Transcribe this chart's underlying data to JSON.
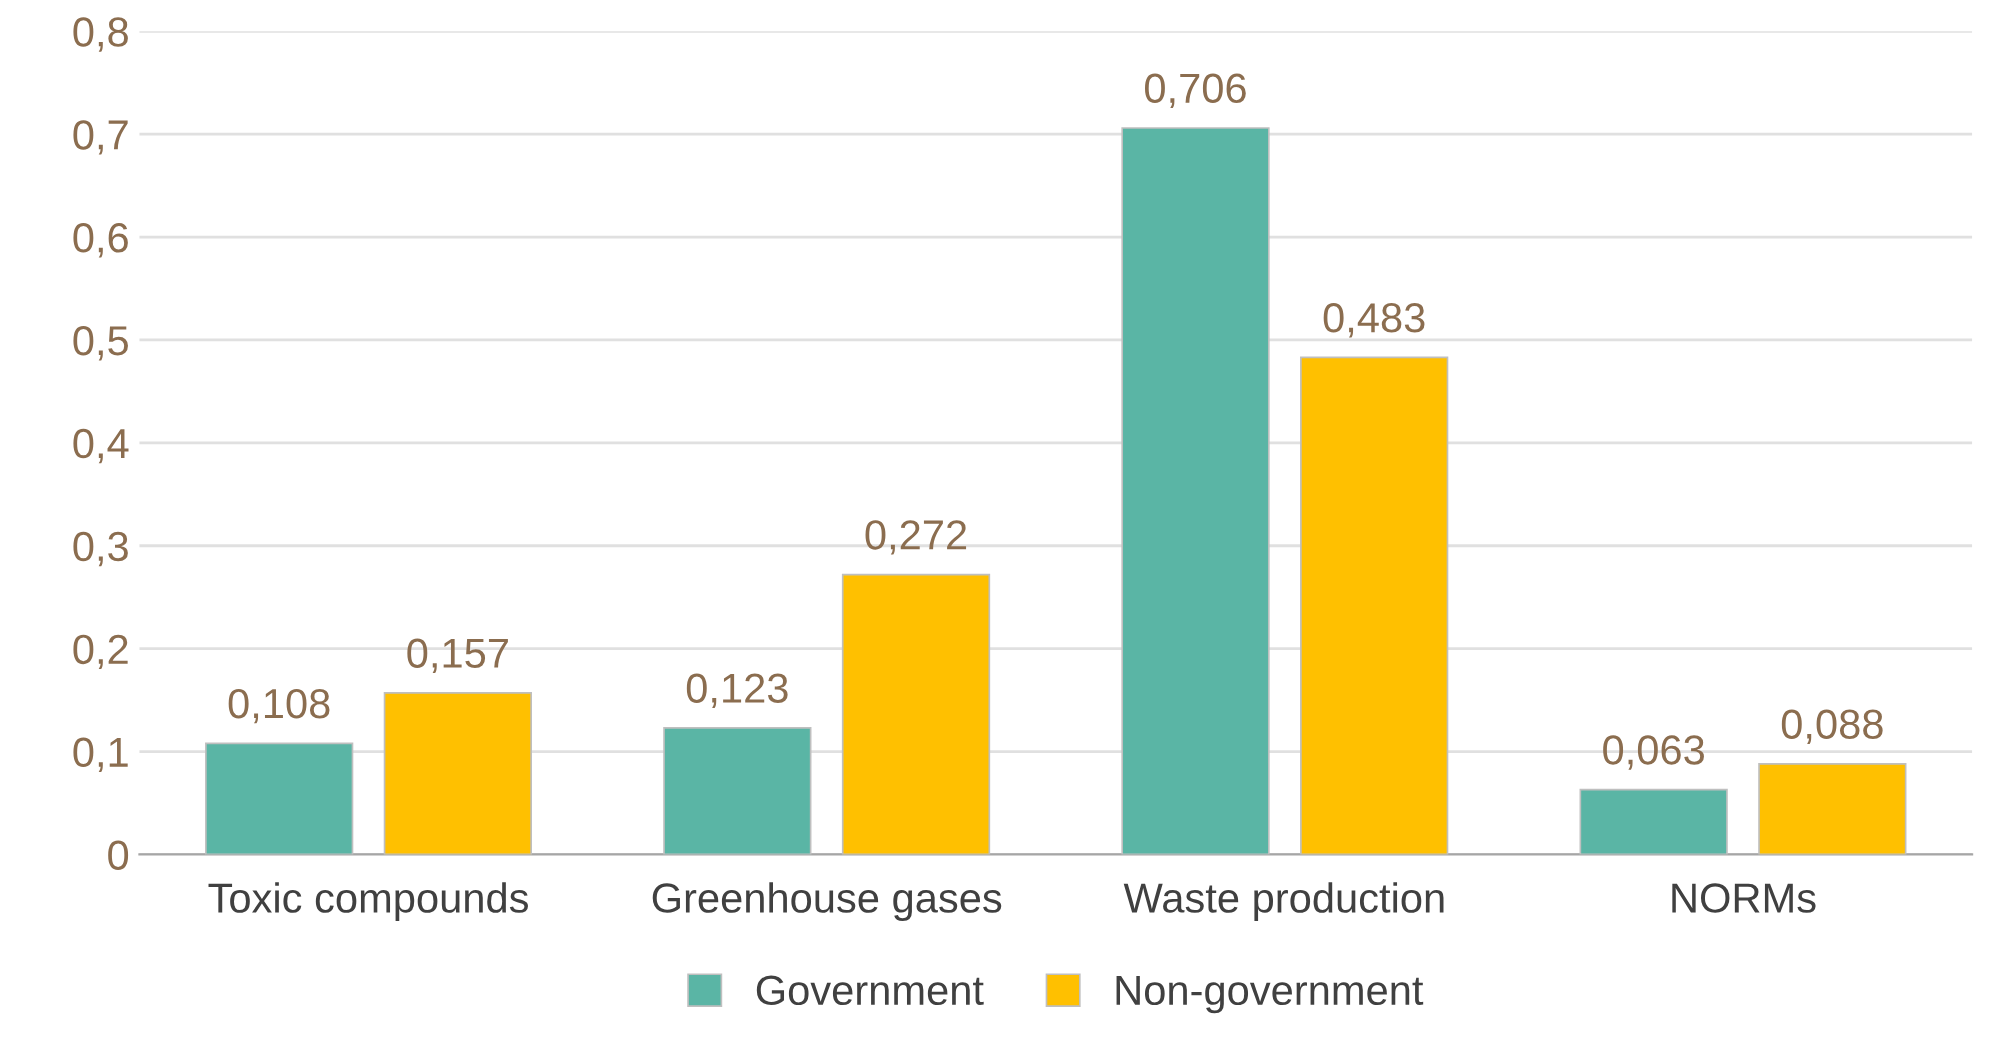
{
  "chart_data": {
    "type": "bar",
    "categories": [
      "Toxic compounds",
      "Greenhouse gases",
      "Waste production",
      "NORMs"
    ],
    "series": [
      {
        "name": "Government",
        "color": "#5ab5a5",
        "values": [
          0.108,
          0.123,
          0.706,
          0.063
        ],
        "value_labels": [
          "0,108",
          "0,123",
          "0,706",
          "0,063"
        ]
      },
      {
        "name": "Non-government",
        "color": "#ffc000",
        "values": [
          0.157,
          0.272,
          0.483,
          0.088
        ],
        "value_labels": [
          "0,157",
          "0,272",
          "0,483",
          "0,088"
        ]
      }
    ],
    "ylim": [
      0,
      0.8
    ],
    "yticks": [
      0,
      {
        "value": 0.1,
        "label": "0,1"
      },
      {
        "value": 0.2,
        "label": "0,2"
      },
      {
        "value": 0.3,
        "label": "0,3"
      },
      {
        "value": 0.4,
        "label": "0,4"
      },
      {
        "value": 0.5,
        "label": "0,5"
      },
      {
        "value": 0.6,
        "label": "0,6"
      },
      {
        "value": 0.7,
        "label": "0,7"
      },
      {
        "value": 0.8,
        "label": "0,8"
      }
    ],
    "grid": "y",
    "legend": "bottom"
  }
}
